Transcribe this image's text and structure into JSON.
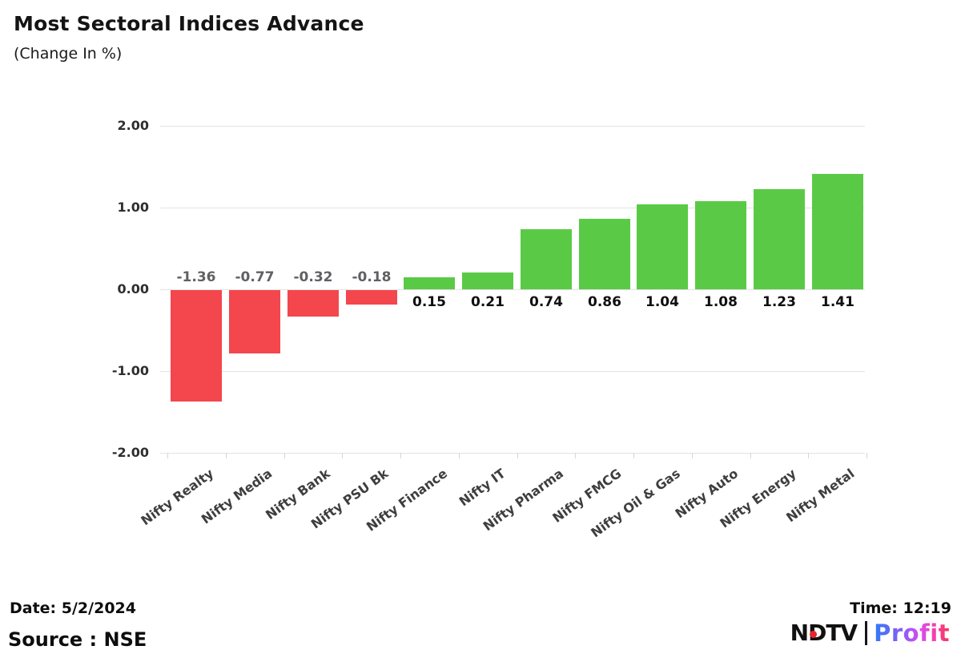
{
  "header": {
    "title": "Most Sectoral Indices Advance",
    "subtitle": "(Change In %)"
  },
  "chart_data": {
    "type": "bar",
    "title": "Most Sectoral Indices Advance",
    "subtitle": "(Change In %)",
    "unit": "percent change",
    "categories": [
      "Nifty Realty",
      "Nifty Media",
      "Nifty Bank",
      "Nifty PSU Bk",
      "Nifty Finance",
      "Nifty IT",
      "Nifty Pharma",
      "Nifty FMCG",
      "Nifty Oil & Gas",
      "Nifty Auto",
      "Nifty Energy",
      "Nifty Metal"
    ],
    "values": [
      -1.36,
      -0.77,
      -0.32,
      -0.18,
      0.15,
      0.21,
      0.74,
      0.86,
      1.04,
      1.08,
      1.23,
      1.41
    ],
    "value_labels": [
      "-1.36",
      "-0.77",
      "-0.32",
      "-0.18",
      "0.15",
      "0.21",
      "0.74",
      "0.86",
      "1.04",
      "1.08",
      "1.23",
      "1.41"
    ],
    "y_axis": {
      "tick_values": [
        2,
        1,
        0,
        -1,
        -2
      ],
      "tick_labels": [
        "2.00",
        "1.00",
        "0.00",
        "-1.00",
        "-2.00"
      ]
    },
    "ylim": [
      -2,
      2
    ],
    "grid": true,
    "legend": "none",
    "colors": {
      "positive": "#5aca46",
      "negative": "#f3464d",
      "gridline": "#e3e3e3",
      "positive_label": "#0f0f0f",
      "negative_label": "#5f6063"
    }
  },
  "footer": {
    "date_label": "Date: 5/2/2024",
    "source_label": "Source : NSE",
    "time_label": "Time: 12:19"
  },
  "logo": {
    "ndtv": "NDTV",
    "profit": "Profit"
  }
}
